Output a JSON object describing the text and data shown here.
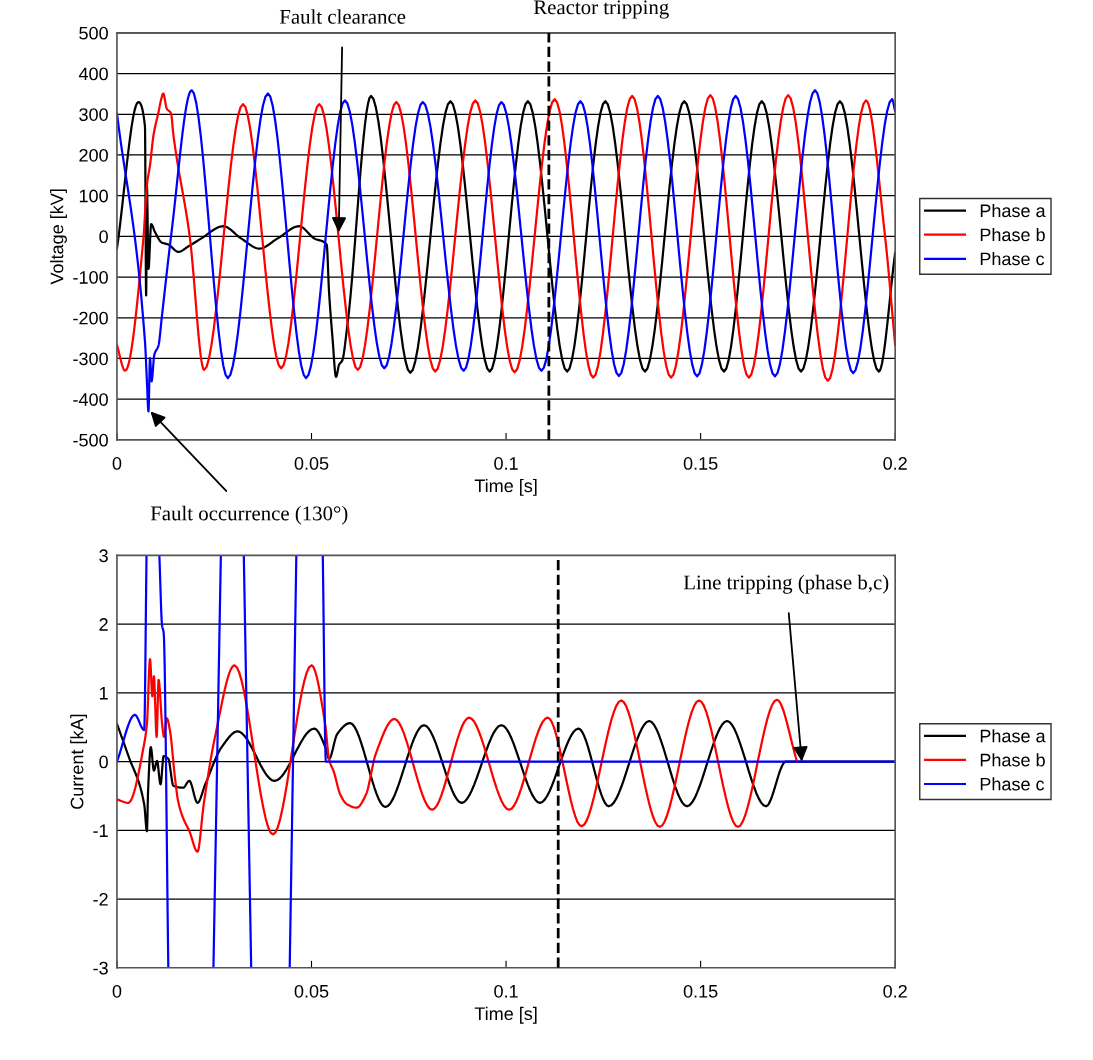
{
  "chart_data": [
    {
      "type": "line",
      "xlabel": "Time [s]",
      "ylabel": "Voltage [kV]",
      "xlim": [
        0,
        0.2
      ],
      "xticks": [
        0,
        0.05,
        0.1,
        0.15,
        0.2
      ],
      "ylim": [
        -500,
        500
      ],
      "yticks": [
        -500,
        -400,
        -300,
        -200,
        -100,
        0,
        100,
        200,
        300,
        400,
        500
      ],
      "grid": "y",
      "legend": "right",
      "line_style": "solid",
      "marker": "none",
      "series": [
        {
          "name": "Phase a",
          "color": "#000000",
          "x": [
            0,
            0.0055,
            0.0072,
            0.0075,
            0.0077,
            0.0081,
            0.0088,
            0.0098,
            0.0115,
            0.0132,
            0.0158,
            0.0183,
            0.0217,
            0.0273,
            0.0319,
            0.0366,
            0.0413,
            0.0468,
            0.0507,
            0.0539,
            0.0545,
            0.0554,
            0.0563,
            0.0571,
            0.0579,
            0.0592,
            0.0653,
            0.0754,
            0.0857,
            0.0958,
            0.1056,
            0.1157,
            0.1255,
            0.1357,
            0.1458,
            0.156,
            0.1657,
            0.1758,
            0.1858,
            0.1958,
            0.2
          ],
          "values": [
            -30,
            330,
            270,
            -145,
            125,
            -80,
            30,
            10,
            -15,
            -20,
            -38,
            -25,
            -5,
            25,
            -5,
            -30,
            -5,
            25,
            -5,
            -20,
            -135,
            -250,
            -345,
            -315,
            -305,
            -220,
            345,
            -335,
            332,
            -332,
            332,
            -332,
            332,
            -332,
            332,
            -332,
            332,
            -332,
            332,
            -332,
            -40
          ]
        },
        {
          "name": "Phase b",
          "color": "#ff0000",
          "x": [
            0,
            0.0021,
            0.0068,
            0.0077,
            0.0085,
            0.0094,
            0.0107,
            0.0113,
            0.0119,
            0.0128,
            0.0139,
            0.0145,
            0.0187,
            0.0224,
            0.0324,
            0.0422,
            0.052,
            0.0619,
            0.0718,
            0.0818,
            0.0921,
            0.1022,
            0.1125,
            0.1224,
            0.1324,
            0.1424,
            0.1525,
            0.1624,
            0.1725,
            0.1827,
            0.1925,
            0.1974,
            0.2
          ],
          "values": [
            -267,
            -330,
            -5,
            126,
            175,
            249,
            306,
            334,
            351,
            314,
            302,
            250,
            0,
            -328,
            325,
            -324,
            325,
            -328,
            330,
            -332,
            334,
            -334,
            337,
            -347,
            345,
            -347,
            347,
            -347,
            347,
            -355,
            334,
            0,
            -267
          ]
        },
        {
          "name": "Phase c",
          "color": "#0000ff",
          "x": [
            0,
            0.0072,
            0.0077,
            0.0081,
            0.0085,
            0.0089,
            0.0096,
            0.0107,
            0.0115,
            0.0139,
            0.0192,
            0.0285,
            0.0388,
            0.0486,
            0.0586,
            0.0687,
            0.0786,
            0.0891,
            0.0988,
            0.1091,
            0.1191,
            0.129,
            0.139,
            0.1491,
            0.159,
            0.1691,
            0.1794,
            0.1892,
            0.1992,
            0.2
          ],
          "values": [
            302,
            -258,
            -356,
            -430,
            -299,
            -356,
            -291,
            -267,
            -201,
            0,
            359,
            -348,
            351,
            -348,
            334,
            -324,
            330,
            -330,
            330,
            -330,
            332,
            -343,
            345,
            -344,
            345,
            -344,
            359,
            -336,
            337,
            307
          ]
        }
      ],
      "ref_lines": [
        {
          "axis": "x",
          "value": 0.111,
          "label": "Reactor tripping",
          "color": "#000000",
          "line_style": "dashed"
        }
      ],
      "annotations": [
        {
          "text": "Fault clearance",
          "x": 0.057,
          "y": 10
        },
        {
          "text": "Fault occurrence (130°)",
          "x": 0.0086,
          "y": -430
        }
      ]
    },
    {
      "type": "line",
      "xlabel": "Time [s]",
      "ylabel": "Current [kA]",
      "xlim": [
        0,
        0.2
      ],
      "xticks": [
        0,
        0.05,
        0.1,
        0.15,
        0.2
      ],
      "ylim": [
        -3,
        3
      ],
      "yticks": [
        -3,
        -2,
        -1,
        0,
        1,
        2,
        3
      ],
      "grid": "y",
      "legend": "right",
      "line_style": "solid",
      "marker": "none",
      "series": [
        {
          "name": "Phase a",
          "color": "#000000",
          "x": [
            0,
            0.0029,
            0.007,
            0.0077,
            0.008,
            0.0087,
            0.0095,
            0.0103,
            0.0112,
            0.012,
            0.0132,
            0.0145,
            0.017,
            0.0186,
            0.0207,
            0.0227,
            0.0269,
            0.031,
            0.0405,
            0.0507,
            0.0537,
            0.0545,
            0.0566,
            0.0599,
            0.069,
            0.0789,
            0.0886,
            0.0988,
            0.1087,
            0.1186,
            0.1264,
            0.1368,
            0.1465,
            0.1568,
            0.1668,
            0.1719,
            0.2
          ],
          "values": [
            0.55,
            0.09,
            -0.62,
            -1.01,
            -0.43,
            0.21,
            -0.13,
            0.01,
            -0.33,
            0.08,
            0.04,
            -0.35,
            -0.38,
            -0.28,
            -0.6,
            -0.33,
            0.21,
            0.44,
            -0.28,
            0.48,
            0.19,
            0.04,
            0.4,
            0.56,
            -0.66,
            0.53,
            -0.6,
            0.53,
            -0.6,
            0.48,
            -0.65,
            0.59,
            -0.65,
            0.59,
            -0.65,
            0,
            0
          ]
        },
        {
          "name": "Phase b",
          "color": "#ff0000",
          "x": [
            0,
            0.0029,
            0.007,
            0.0077,
            0.0085,
            0.0091,
            0.0095,
            0.0102,
            0.0107,
            0.0116,
            0.0121,
            0.0128,
            0.0136,
            0.0149,
            0.0157,
            0.017,
            0.0186,
            0.0207,
            0.0223,
            0.0252,
            0.0302,
            0.0401,
            0.05,
            0.0535,
            0.0545,
            0.0558,
            0.0574,
            0.0591,
            0.0616,
            0.064,
            0.0665,
            0.0713,
            0.081,
            0.0905,
            0.1008,
            0.1107,
            0.1194,
            0.1296,
            0.1395,
            0.1496,
            0.1596,
            0.1696,
            0.1748
          ],
          "values": [
            -0.55,
            -0.6,
            0.26,
            0.55,
            1.49,
            0.95,
            1.24,
            0.36,
            1.19,
            0.55,
            0.36,
            0.63,
            0.46,
            -0.23,
            -0.57,
            -0.82,
            -1.01,
            -1.31,
            -0.62,
            0.36,
            1.4,
            -1.06,
            1.4,
            0.55,
            0.04,
            -0.16,
            -0.48,
            -0.62,
            -0.67,
            -0.48,
            0.11,
            0.62,
            -0.7,
            0.64,
            -0.7,
            0.64,
            -0.94,
            0.89,
            -0.95,
            0.89,
            -0.95,
            0.9,
            0
          ]
        },
        {
          "name": "Phase c",
          "color": "#0000ff",
          "x": [
            0,
            0.0046,
            0.007,
            0.0076,
            0.009,
            0.0109,
            0.0116,
            0.012,
            0.0132,
            0.019,
            0.0248,
            0.0267,
            0.03,
            0.0326,
            0.0345,
            0.04,
            0.0444,
            0.0461,
            0.05,
            0.0529,
            0.0537,
            0.2
          ],
          "values": [
            0,
            0.68,
            0.46,
            3,
            null,
            3,
            1.98,
            1.88,
            -3,
            null,
            -3,
            3,
            null,
            3,
            -3,
            null,
            -3,
            3,
            null,
            3,
            0,
            0
          ]
        }
      ],
      "ref_lines": [
        {
          "axis": "x",
          "value": 0.1134,
          "color": "#000000",
          "line_style": "dashed"
        }
      ],
      "annotations": [
        {
          "text": "Line tripping (phase b,c)",
          "x": 0.176,
          "y": 0
        }
      ]
    }
  ]
}
